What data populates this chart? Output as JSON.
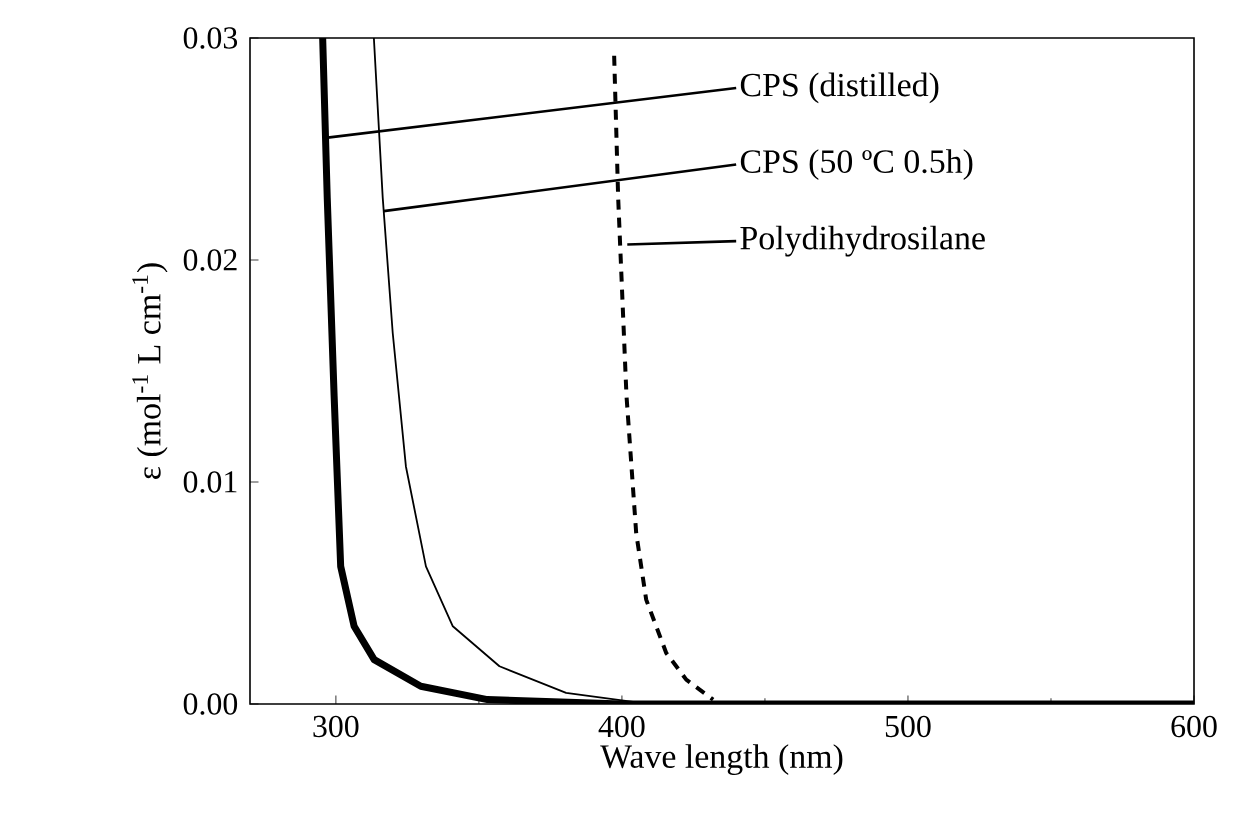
{
  "chart_data": {
    "type": "line",
    "xlabel": "Wave length (nm)",
    "ylabel": "ε (mol$^{-1}$ L cm$^{-1}$)",
    "xlim": [
      270,
      600
    ],
    "xticks": [
      300,
      400,
      500,
      600
    ],
    "ylim": [
      0,
      0.03
    ],
    "yticks": [
      {
        "value": 0,
        "label": "0.00"
      },
      {
        "value": 0.01,
        "label": "0.01"
      },
      {
        "value": 0.02,
        "label": "0.02"
      },
      {
        "value": 0.03,
        "label": "0.03"
      }
    ],
    "grid": false,
    "marker": "none",
    "series": [
      {
        "color": "#000000",
        "line_style": "solid",
        "x": [
          295.4,
          297.0,
          299.4,
          301.7,
          306.4,
          313.4,
          329.7,
          353,
          400,
          600
        ],
        "values": [
          0.03,
          0.0228,
          0.0139,
          0.0062,
          0.0035,
          0.002,
          0.0008,
          0.0002,
          0,
          0
        ]
      },
      {
        "color": "#000000",
        "line_style": "solid",
        "x": [
          313.3,
          316.4,
          319.9,
          324.5,
          331.5,
          340.9,
          357.2,
          380.5,
          403.9
        ],
        "values": [
          0.03,
          0.0228,
          0.0167,
          0.0107,
          0.0062,
          0.0035,
          0.0017,
          0.0005,
          0.0001
        ]
      },
      {
        "color": "#000000",
        "line_style": "dashed",
        "x": [
          397.3,
          398.7,
          401.6,
          405,
          408.5,
          415.5,
          422.5,
          431.9
        ],
        "values": [
          0.0292,
          0.0228,
          0.0139,
          0.0077,
          0.0047,
          0.0023,
          0.0011,
          0.0002
        ]
      }
    ],
    "annotations": [
      {
        "text": "CPS (distilled)",
        "x": 296.4,
        "y": 0.0255
      },
      {
        "text": "CPS (50 ºC 0.5h)",
        "x": 316.7,
        "y": 0.0222
      },
      "Polydihydrosilane"
    ]
  }
}
